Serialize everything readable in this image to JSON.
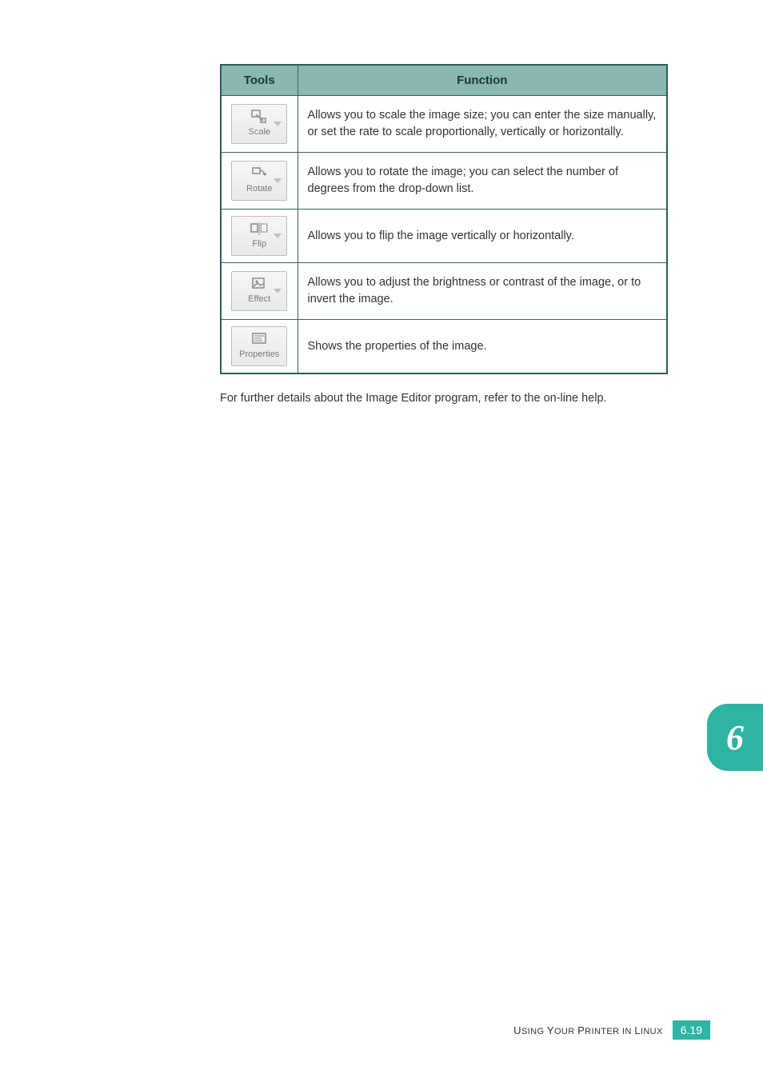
{
  "table": {
    "headers": {
      "tools": "Tools",
      "function": "Function"
    },
    "rows": [
      {
        "tool_label": "Scale",
        "icon": "scale",
        "has_dropdown": true,
        "function": "Allows you to scale the image size; you can enter the size manually, or set the rate to scale proportionally, vertically or horizontally."
      },
      {
        "tool_label": "Rotate",
        "icon": "rotate",
        "has_dropdown": true,
        "function": "Allows you to rotate the image; you can select the number of degrees from the drop-down list."
      },
      {
        "tool_label": "Flip",
        "icon": "flip",
        "has_dropdown": true,
        "function": "Allows you to flip the image vertically or horizontally."
      },
      {
        "tool_label": "Effect",
        "icon": "effect",
        "has_dropdown": true,
        "function": "Allows you to adjust the brightness or contrast of the image, or to invert the image."
      },
      {
        "tool_label": "Properties",
        "icon": "properties",
        "has_dropdown": false,
        "function": "Shows the properties of the image."
      }
    ]
  },
  "paragraph": "For further details about the Image Editor program, refer to the on-line help.",
  "chapter_tab": "6",
  "footer": {
    "text_upper": "U",
    "text_rest1": "SING ",
    "text_upper2": "Y",
    "text_rest2": "OUR ",
    "text_upper3": "P",
    "text_rest3": "RINTER IN ",
    "text_upper4": "L",
    "text_rest4": "INUX",
    "page": "6.19"
  },
  "colors": {
    "header_bg": "#88b8b0",
    "border": "#346060",
    "accent": "#2fb3a3",
    "btn_text": "#7a7a7a"
  }
}
